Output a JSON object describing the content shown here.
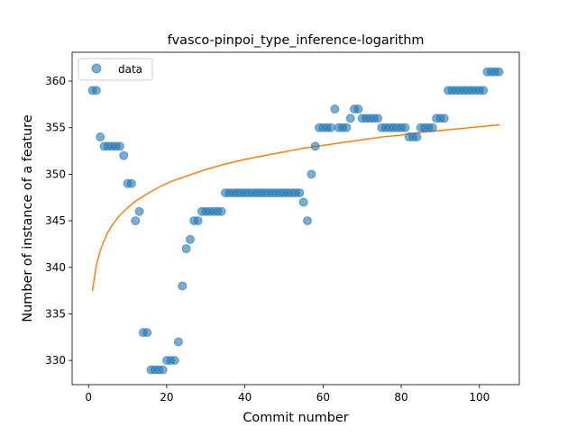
{
  "chart_data": {
    "type": "scatter",
    "title": "fvasco-pinpoi_type_inference-logarithm",
    "xlabel": "Commit number",
    "ylabel": "Number of instance of a feature",
    "xlim": [
      -4.2,
      110.2
    ],
    "ylim": [
      327.4,
      363.1
    ],
    "xticks": [
      0,
      20,
      40,
      60,
      80,
      100
    ],
    "yticks": [
      330,
      335,
      340,
      345,
      350,
      355,
      360
    ],
    "grid": false,
    "legend": {
      "location": "upper left",
      "entries": [
        "data"
      ]
    },
    "series": [
      {
        "name": "data",
        "kind": "scatter",
        "color": "#1f77b4",
        "x": [
          1,
          2,
          3,
          4,
          5,
          6,
          7,
          8,
          9,
          10,
          11,
          12,
          13,
          14,
          15,
          16,
          17,
          18,
          19,
          20,
          21,
          22,
          23,
          24,
          25,
          26,
          27,
          28,
          29,
          30,
          31,
          32,
          33,
          34,
          35,
          36,
          37,
          38,
          39,
          40,
          41,
          42,
          43,
          44,
          45,
          46,
          47,
          48,
          49,
          50,
          51,
          52,
          53,
          54,
          55,
          56,
          57,
          58,
          59,
          60,
          61,
          62,
          63,
          64,
          65,
          66,
          67,
          68,
          69,
          70,
          71,
          72,
          73,
          74,
          75,
          76,
          77,
          78,
          79,
          80,
          81,
          82,
          83,
          84,
          85,
          86,
          87,
          88,
          89,
          90,
          91,
          92,
          93,
          94,
          95,
          96,
          97,
          98,
          99,
          100,
          101,
          102,
          103,
          104,
          105
        ],
        "y": [
          359,
          359,
          354,
          353,
          353,
          353,
          353,
          353,
          352,
          349,
          349,
          345,
          346,
          333,
          333,
          329,
          329,
          329,
          329,
          330,
          330,
          330,
          332,
          338,
          342,
          343,
          345,
          345,
          346,
          346,
          346,
          346,
          346,
          346,
          348,
          348,
          348,
          348,
          348,
          348,
          348,
          348,
          348,
          348,
          348,
          348,
          348,
          348,
          348,
          348,
          348,
          348,
          348,
          348,
          347,
          345,
          350,
          353,
          355,
          355,
          355,
          355,
          357,
          355,
          355,
          355,
          356,
          357,
          357,
          356,
          356,
          356,
          356,
          356,
          355,
          355,
          355,
          355,
          355,
          355,
          355,
          354,
          354,
          354,
          355,
          355,
          355,
          355,
          356,
          356,
          356,
          359,
          359,
          359,
          359,
          359,
          359,
          359,
          359,
          359,
          359,
          361,
          361,
          361,
          361
        ]
      },
      {
        "name": "",
        "kind": "line",
        "color": "#ff7f0e",
        "model": "logarithmic",
        "x": [
          1,
          2,
          3,
          4,
          5,
          6,
          8,
          10,
          12,
          15,
          18,
          21,
          25,
          30,
          35,
          40,
          45,
          50,
          55,
          60,
          65,
          70,
          75,
          80,
          85,
          90,
          95,
          100,
          105
        ],
        "y": [
          337.5,
          340.2,
          341.8,
          342.9,
          343.8,
          344.5,
          345.6,
          346.4,
          347.1,
          347.9,
          348.6,
          349.2,
          349.8,
          350.5,
          351.1,
          351.6,
          352.0,
          352.4,
          352.8,
          353.1,
          353.4,
          353.7,
          354.0,
          354.2,
          354.5,
          354.7,
          354.9,
          355.1,
          355.3
        ]
      }
    ]
  }
}
